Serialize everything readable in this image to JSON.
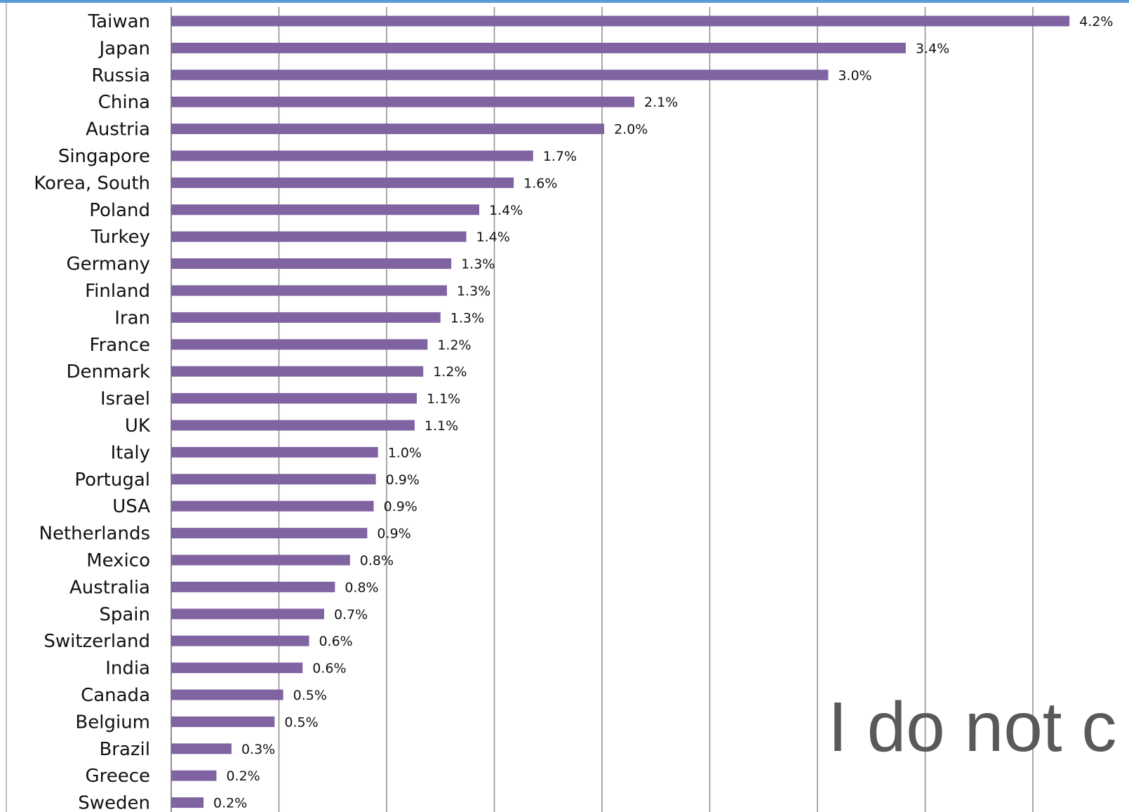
{
  "chart_data": {
    "type": "bar",
    "orientation": "horizontal",
    "categories": [
      "Taiwan",
      "Japan",
      "Russia",
      "China",
      "Austria",
      "Singapore",
      "Korea, South",
      "Poland",
      "Turkey",
      "Germany",
      "Finland",
      "Iran",
      "France",
      "Denmark",
      "Israel",
      "UK",
      "Italy",
      "Portugal",
      "USA",
      "Netherlands",
      "Mexico",
      "Australia",
      "Spain",
      "Switzerland",
      "India",
      "Canada",
      "Belgium",
      "Brazil",
      "Greece",
      "Sweden"
    ],
    "values": [
      4.17,
      3.41,
      3.05,
      2.15,
      2.01,
      1.68,
      1.59,
      1.43,
      1.37,
      1.3,
      1.28,
      1.25,
      1.19,
      1.17,
      1.14,
      1.13,
      0.96,
      0.95,
      0.94,
      0.91,
      0.83,
      0.76,
      0.71,
      0.64,
      0.61,
      0.52,
      0.48,
      0.28,
      0.21,
      0.15
    ],
    "data_labels": [
      "4.2%",
      "3.4%",
      "3.0%",
      "2.1%",
      "2.0%",
      "1.7%",
      "1.6%",
      "1.4%",
      "1.4%",
      "1.3%",
      "1.3%",
      "1.3%",
      "1.2%",
      "1.2%",
      "1.1%",
      "1.1%",
      "1.0%",
      "0.9%",
      "0.9%",
      "0.9%",
      "0.8%",
      "0.8%",
      "0.7%",
      "0.6%",
      "0.6%",
      "0.5%",
      "0.5%",
      "0.3%",
      "0.2%",
      "0.2%"
    ],
    "xlim": [
      0,
      4.5
    ],
    "x_gridlines": [
      0.5,
      1.0,
      1.5,
      2.0,
      2.5,
      3.0,
      3.5,
      4.0
    ],
    "grid": true,
    "legend": "none",
    "colors": {
      "bar": "#8064a2",
      "grid": "#8c8c8c",
      "text": "#111111"
    }
  },
  "overlay": {
    "text": "I do not c"
  }
}
